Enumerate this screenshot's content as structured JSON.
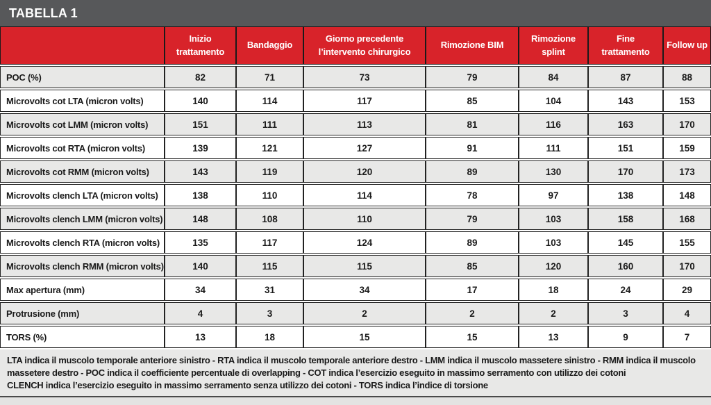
{
  "title": "TABELLA 1",
  "table": {
    "columns": [
      "",
      "Inizio trattamento",
      "Bandaggio",
      "Giorno precedente l’intervento chirurgico",
      "Rimozione BIM",
      "Rimozione splint",
      "Fine trattamento",
      "Follow up"
    ],
    "rows": [
      {
        "label": "POC (%)",
        "values": [
          82,
          71,
          73,
          79,
          84,
          87,
          88
        ]
      },
      {
        "label": "Microvolts cot LTA (micron volts)",
        "values": [
          140,
          114,
          117,
          85,
          104,
          143,
          153
        ]
      },
      {
        "label": "Microvolts cot LMM (micron volts)",
        "values": [
          151,
          111,
          113,
          81,
          116,
          163,
          170
        ]
      },
      {
        "label": "Microvolts cot RTA (micron volts)",
        "values": [
          139,
          121,
          127,
          91,
          111,
          151,
          159
        ]
      },
      {
        "label": "Microvolts cot RMM (micron volts)",
        "values": [
          143,
          119,
          120,
          89,
          130,
          170,
          173
        ]
      },
      {
        "label": "Microvolts clench LTA (micron volts)",
        "values": [
          138,
          110,
          114,
          78,
          97,
          138,
          148
        ]
      },
      {
        "label": "Microvolts clench LMM (micron volts)",
        "values": [
          148,
          108,
          110,
          79,
          103,
          158,
          168
        ]
      },
      {
        "label": "Microvolts clench RTA (micron volts)",
        "values": [
          135,
          117,
          124,
          89,
          103,
          145,
          155
        ]
      },
      {
        "label": "Microvolts clench RMM (micron volts)",
        "values": [
          140,
          115,
          115,
          85,
          120,
          160,
          170
        ]
      },
      {
        "label": "Max apertura (mm)",
        "values": [
          34,
          31,
          34,
          17,
          18,
          24,
          29
        ]
      },
      {
        "label": "Protrusione (mm)",
        "values": [
          4,
          3,
          2,
          2,
          2,
          3,
          4
        ]
      },
      {
        "label": "TORS (%)",
        "values": [
          13,
          18,
          15,
          15,
          13,
          9,
          7
        ]
      }
    ]
  },
  "footer": {
    "lines": [
      "LTA indica il muscolo temporale anteriore sinistro - RTA indica il muscolo temporale anteriore destro - LMM indica il muscolo massetere sinistro  - RMM indica il muscolo",
      "massetere destro - POC indica il coefficiente percentuale di overlapping - COT indica l’esercizio eseguito in massimo serramento con utilizzo dei cotoni",
      "CLENCH indica l’esercizio eseguito in massimo serramento senza utilizzo dei cotoni - TORS indica l’indice di torsione"
    ]
  },
  "colors": {
    "accent_red": "#d8232a",
    "title_bar_gray": "#57585a",
    "row_alt_gray": "#e8e8e7",
    "border_dark": "#222222"
  }
}
